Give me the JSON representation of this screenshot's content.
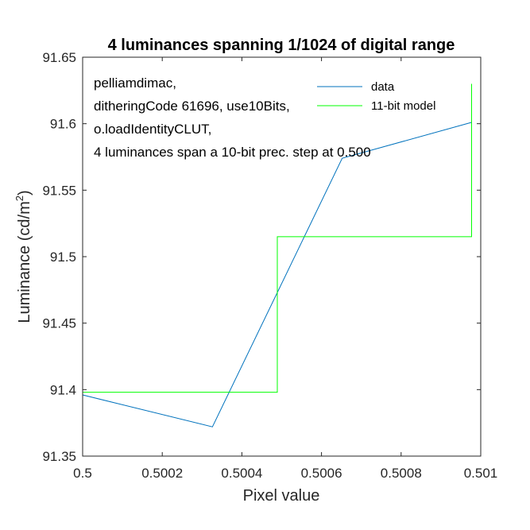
{
  "chart_data": {
    "type": "line",
    "title": "4 luminances spanning 1/1024 of digital range",
    "xlabel": "Pixel value",
    "ylabel_main": "Luminance (cd/m",
    "ylabel_sup": "2",
    "ylabel_close": ")",
    "xlim": [
      0.5,
      0.501
    ],
    "ylim": [
      91.35,
      91.65
    ],
    "xticks": [
      {
        "value": 0.5,
        "label": "0.5"
      },
      {
        "value": 0.5002,
        "label": "0.5002"
      },
      {
        "value": 0.5004,
        "label": "0.5004"
      },
      {
        "value": 0.5006,
        "label": "0.5006"
      },
      {
        "value": 0.5008,
        "label": "0.5008"
      },
      {
        "value": 0.501,
        "label": "0.501"
      }
    ],
    "yticks": [
      {
        "value": 91.35,
        "label": "91.35"
      },
      {
        "value": 91.4,
        "label": "91.4"
      },
      {
        "value": 91.45,
        "label": "91.45"
      },
      {
        "value": 91.5,
        "label": "91.5"
      },
      {
        "value": 91.55,
        "label": "91.55"
      },
      {
        "value": 91.6,
        "label": "91.6"
      },
      {
        "value": 91.65,
        "label": "91.65"
      }
    ],
    "grid": false,
    "legend_position": "top-right",
    "annotation_lines": [
      "pelliamdimac,",
      "ditheringCode 61696, use10Bits,",
      "o.loadIdentityCLUT,",
      "4 luminances span a 10-bit prec. step at 0.500"
    ],
    "series": [
      {
        "name": "data",
        "color": "#0072BD",
        "points": [
          {
            "x": 0.5,
            "y": 91.396
          },
          {
            "x": 0.500326,
            "y": 91.372
          },
          {
            "x": 0.500652,
            "y": 91.574
          },
          {
            "x": 0.500977,
            "y": 91.601
          }
        ]
      },
      {
        "name": "11-bit model",
        "color": "#00FF00",
        "points": [
          {
            "x": 0.5,
            "y": 91.398
          },
          {
            "x": 0.500489,
            "y": 91.398
          },
          {
            "x": 0.500489,
            "y": 91.515
          },
          {
            "x": 0.500977,
            "y": 91.515
          },
          {
            "x": 0.500977,
            "y": 91.63
          }
        ]
      }
    ]
  }
}
